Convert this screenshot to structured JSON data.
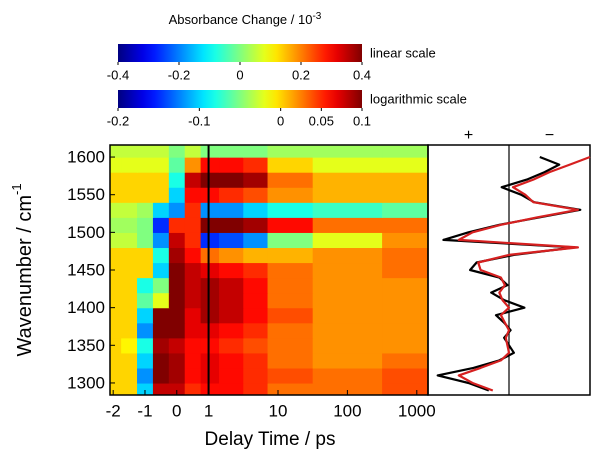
{
  "chart_data": [
    {
      "type": "heatmap",
      "colorbar_title": "Absorbance Change / 10",
      "colorbar_title_exponent": "-3",
      "colorbars": [
        {
          "label": "linear scale",
          "lim": [
            -0.4,
            0.4
          ],
          "ticks": [
            -0.4,
            -0.2,
            0,
            0.2,
            0.4
          ]
        },
        {
          "label": "logarithmic scale",
          "lim": [
            -0.2,
            0.1
          ],
          "ticks": [
            -0.2,
            -0.1,
            0,
            0.05,
            0.1
          ]
        }
      ],
      "colormap": "jet",
      "xlabel": "Delay Time / ps",
      "ylabel": "Wavenumber / cm",
      "ylabel_exponent": "-1",
      "xscale": "linear-log",
      "linthresh": 1,
      "xlim": [
        -2.1,
        1450
      ],
      "xticks": [
        -2,
        -1,
        0,
        1,
        10,
        100,
        1000
      ],
      "ylim": [
        1284,
        1616
      ],
      "yticks": [
        1300,
        1350,
        1400,
        1450,
        1500,
        1550,
        1600
      ],
      "x": [
        -2,
        -1.5,
        -1,
        -0.5,
        0,
        0.5,
        1,
        2,
        5,
        10,
        100,
        1000
      ],
      "y": [
        1290,
        1310,
        1330,
        1350,
        1370,
        1390,
        1410,
        1430,
        1450,
        1470,
        1490,
        1510,
        1530,
        1550,
        1570,
        1590,
        1610
      ],
      "values": [
        [
          0,
          0,
          -0.1,
          0.08,
          0.08,
          0.05,
          0.06,
          0.06,
          0.05,
          0.03,
          0.03,
          0.04
        ],
        [
          0,
          0,
          -0.12,
          0.1,
          0.09,
          0.06,
          0.07,
          0.06,
          0.05,
          0.04,
          0.03,
          0.04
        ],
        [
          0,
          0,
          -0.1,
          0.1,
          0.09,
          0.06,
          0.07,
          0.06,
          0.05,
          0.03,
          0.02,
          0.03
        ],
        [
          0,
          -0.01,
          -0.08,
          0.09,
          0.08,
          0.06,
          0.06,
          0.05,
          0.04,
          0.03,
          0.02,
          0.02
        ],
        [
          0,
          0,
          -0.12,
          0.1,
          0.1,
          0.07,
          0.07,
          0.06,
          0.05,
          0.03,
          0.02,
          0.02
        ],
        [
          0,
          0,
          -0.1,
          0.1,
          0.1,
          0.07,
          0.09,
          0.08,
          0.06,
          0.04,
          0.02,
          0.02
        ],
        [
          0,
          0,
          -0.06,
          -0.02,
          0.1,
          0.08,
          0.09,
          0.08,
          0.06,
          0.03,
          0.02,
          0.02
        ],
        [
          0,
          0,
          -0.08,
          -0.05,
          0.1,
          0.08,
          0.09,
          0.08,
          0.06,
          0.03,
          0.02,
          0.02
        ],
        [
          0,
          0,
          0,
          -0.1,
          0.1,
          0.08,
          0.07,
          0.06,
          0.05,
          0.03,
          0.02,
          0.03
        ],
        [
          0,
          0,
          0,
          -0.08,
          0.09,
          0.06,
          0.03,
          0.02,
          0.01,
          0.01,
          0.02,
          0.03
        ],
        [
          -0.03,
          -0.03,
          -0.05,
          -0.12,
          0.08,
          0.05,
          -0.15,
          -0.14,
          -0.12,
          -0.05,
          -0.02,
          0.02
        ],
        [
          -0.04,
          -0.04,
          -0.05,
          -0.15,
          0.05,
          0.05,
          0.1,
          0.1,
          0.09,
          0.06,
          0.03,
          0.03
        ],
        [
          -0.03,
          -0.03,
          -0.04,
          -0.1,
          -0.12,
          0.05,
          -0.12,
          -0.12,
          -0.1,
          -0.08,
          -0.07,
          -0.06
        ],
        [
          0,
          0,
          0,
          0,
          -0.1,
          0.06,
          0.06,
          0.05,
          0.04,
          0.02,
          0.01,
          0.01
        ],
        [
          0,
          0,
          0,
          0,
          -0.08,
          0.08,
          0.1,
          0.1,
          0.09,
          0.03,
          0.01,
          0.01
        ],
        [
          -0.02,
          -0.02,
          -0.02,
          -0.02,
          -0.06,
          0.02,
          0.06,
          0.06,
          0.05,
          0,
          -0.02,
          -0.02
        ],
        [
          -0.03,
          -0.03,
          -0.03,
          -0.03,
          -0.05,
          -0.03,
          -0.05,
          -0.05,
          -0.05,
          -0.04,
          -0.04,
          -0.04
        ]
      ]
    },
    {
      "type": "line",
      "sign_labels": [
        "+",
        "−"
      ],
      "xlim": [
        1,
        -1
      ],
      "y": [
        1290,
        1300,
        1310,
        1320,
        1330,
        1340,
        1350,
        1360,
        1370,
        1380,
        1390,
        1400,
        1410,
        1420,
        1430,
        1440,
        1450,
        1460,
        1470,
        1480,
        1490,
        1500,
        1510,
        1520,
        1530,
        1540,
        1550,
        1560,
        1570,
        1580,
        1590,
        1600
      ],
      "series": [
        {
          "color": "#000000",
          "values": [
            0.25,
            0.5,
            0.88,
            0.44,
            0.12,
            -0.06,
            0,
            0.06,
            -0.02,
            0.06,
            0.16,
            -0.19,
            0.06,
            0.22,
            0.02,
            0.12,
            0.48,
            0.4,
            -0.06,
            -0.81,
            0.81,
            0.5,
            0.12,
            -0.38,
            -0.88,
            -0.31,
            -0.15,
            0.09,
            -0.22,
            -0.44,
            -0.62,
            -0.38
          ]
        },
        {
          "color": "#d62020",
          "values": [
            0.2,
            0.45,
            0.62,
            0.35,
            0.1,
            0,
            0.02,
            0.04,
            0,
            0.05,
            0.1,
            0,
            0.08,
            0.12,
            0.05,
            0.1,
            0.35,
            0.38,
            0,
            -0.85,
            0.62,
            0.45,
            0.1,
            -0.35,
            -0.85,
            -0.3,
            -0.2,
            -0.05,
            -0.3,
            -0.5,
            -0.75,
            -1.0
          ]
        }
      ]
    }
  ]
}
